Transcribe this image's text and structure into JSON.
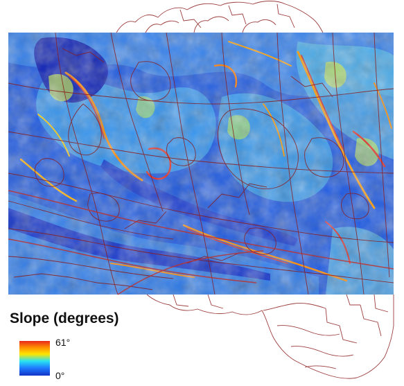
{
  "legend": {
    "title": "Slope (degrees)",
    "max_label": "61°",
    "min_label": "0°",
    "colors": [
      "#e8281e",
      "#ff8a00",
      "#ffe600",
      "#29e3f2",
      "#1e7bff",
      "#1432c8"
    ]
  },
  "map": {
    "raster_base_color": "#1f5ae0",
    "boundary_color": "#8b1a1a"
  }
}
